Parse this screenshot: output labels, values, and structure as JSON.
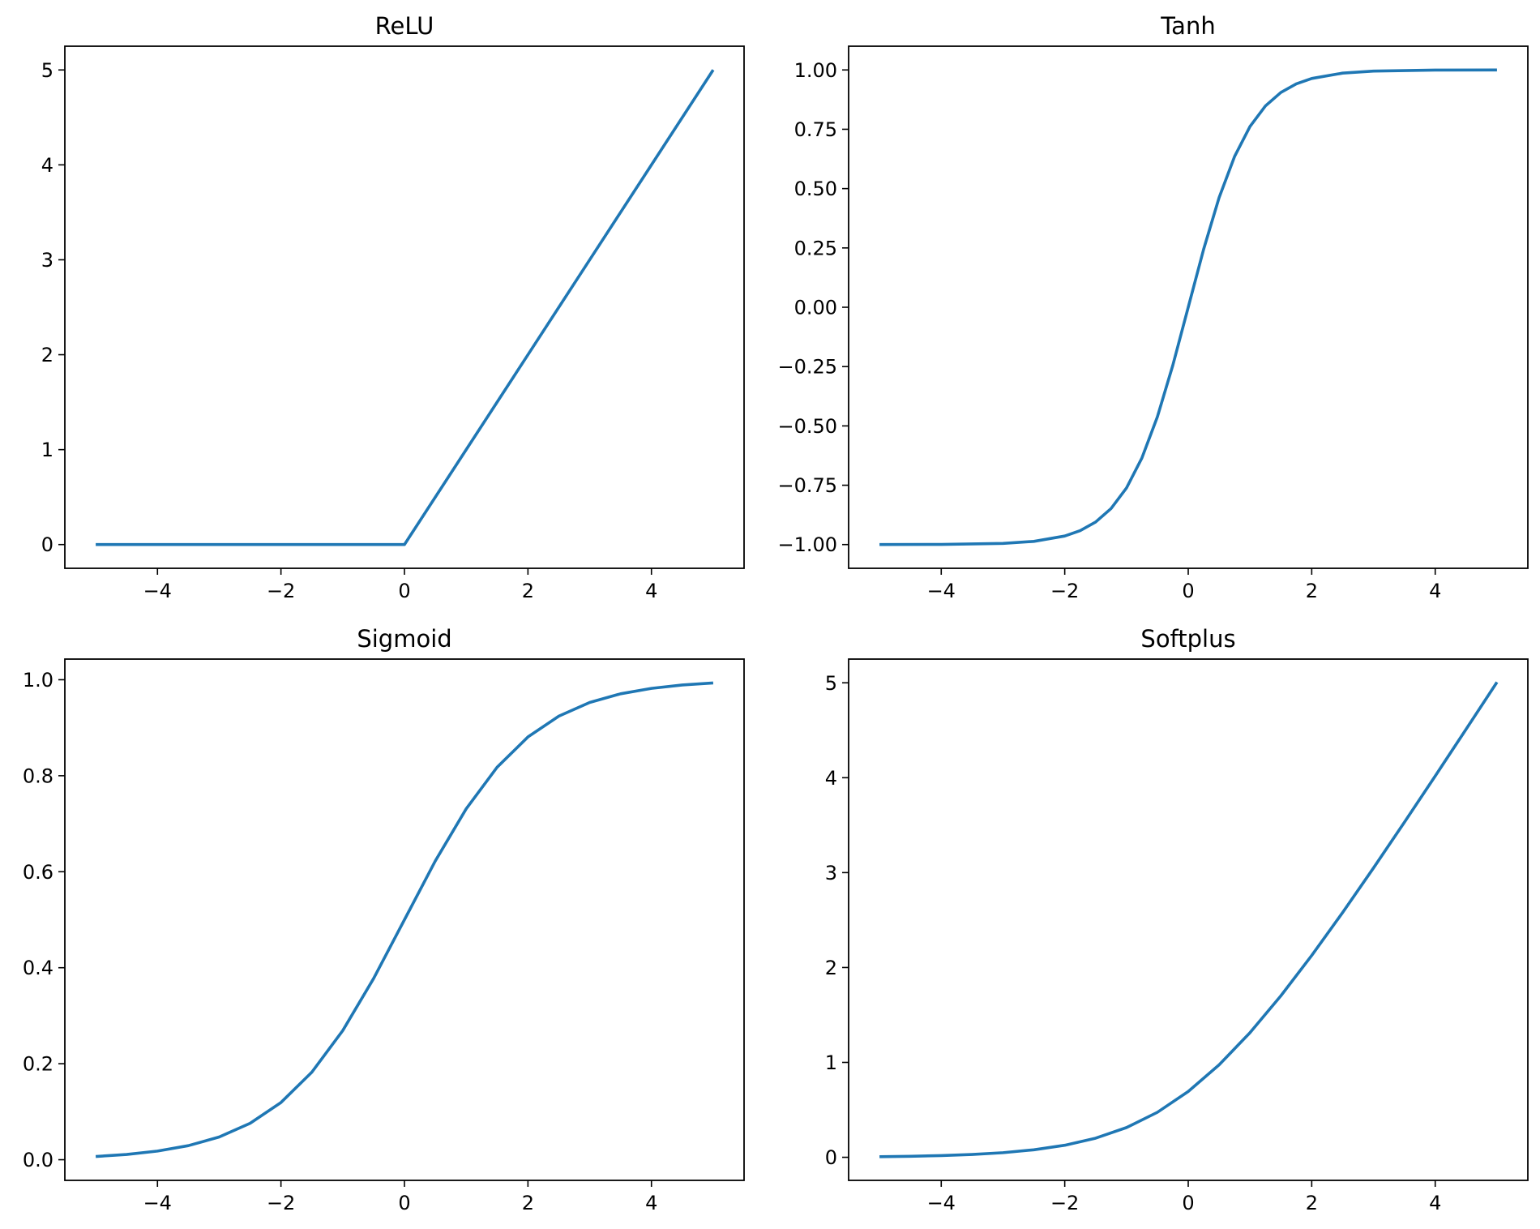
{
  "chart_data": [
    {
      "type": "line",
      "title": "ReLU",
      "xlabel": "",
      "ylabel": "",
      "xlim": [
        -5.5,
        5.5
      ],
      "ylim": [
        -0.25,
        5.25
      ],
      "xticks": [
        -4,
        -2,
        0,
        2,
        4
      ],
      "xtick_labels": [
        "−4",
        "−2",
        "0",
        "2",
        "4"
      ],
      "yticks": [
        0,
        1,
        2,
        3,
        4,
        5
      ],
      "ytick_labels": [
        "0",
        "1",
        "2",
        "3",
        "4",
        "5"
      ],
      "grid": false,
      "series": [
        {
          "x": [
            -5,
            -4,
            -3,
            -2,
            -1,
            0,
            0.05,
            1,
            2,
            3,
            4,
            5
          ],
          "y": [
            0,
            0,
            0,
            0,
            0,
            0,
            0.05,
            1,
            2,
            3,
            4,
            5
          ],
          "color": "#1f77b4"
        }
      ]
    },
    {
      "type": "line",
      "title": "Tanh",
      "xlabel": "",
      "ylabel": "",
      "xlim": [
        -5.5,
        5.5
      ],
      "ylim": [
        -1.1,
        1.1
      ],
      "xticks": [
        -4,
        -2,
        0,
        2,
        4
      ],
      "xtick_labels": [
        "−4",
        "−2",
        "0",
        "2",
        "4"
      ],
      "yticks": [
        -1.0,
        -0.75,
        -0.5,
        -0.25,
        0.0,
        0.25,
        0.5,
        0.75,
        1.0
      ],
      "ytick_labels": [
        "−1.00",
        "−0.75",
        "−0.50",
        "−0.25",
        "0.00",
        "0.25",
        "0.50",
        "0.75",
        "1.00"
      ],
      "grid": false,
      "series": [
        {
          "x": [
            -5,
            -4,
            -3,
            -2.5,
            -2,
            -1.75,
            -1.5,
            -1.25,
            -1,
            -0.75,
            -0.5,
            -0.25,
            0,
            0.25,
            0.5,
            0.75,
            1,
            1.25,
            1.5,
            1.75,
            2,
            2.5,
            3,
            4,
            5
          ],
          "y": [
            -0.9999,
            -0.9993,
            -0.9951,
            -0.9866,
            -0.964,
            -0.9414,
            -0.9051,
            -0.8483,
            -0.7616,
            -0.6351,
            -0.4621,
            -0.2449,
            0,
            0.2449,
            0.4621,
            0.6351,
            0.7616,
            0.8483,
            0.9051,
            0.9414,
            0.964,
            0.9866,
            0.9951,
            0.9993,
            0.9999
          ],
          "color": "#1f77b4"
        }
      ]
    },
    {
      "type": "line",
      "title": "Sigmoid",
      "xlabel": "",
      "ylabel": "",
      "xlim": [
        -5.5,
        5.5
      ],
      "ylim": [
        -0.043,
        1.043
      ],
      "xticks": [
        -4,
        -2,
        0,
        2,
        4
      ],
      "xtick_labels": [
        "−4",
        "−2",
        "0",
        "2",
        "4"
      ],
      "yticks": [
        0.0,
        0.2,
        0.4,
        0.6,
        0.8,
        1.0
      ],
      "ytick_labels": [
        "0.0",
        "0.2",
        "0.4",
        "0.6",
        "0.8",
        "1.0"
      ],
      "grid": false,
      "series": [
        {
          "x": [
            -5,
            -4.5,
            -4,
            -3.5,
            -3,
            -2.5,
            -2,
            -1.5,
            -1,
            -0.5,
            0,
            0.5,
            1,
            1.5,
            2,
            2.5,
            3,
            3.5,
            4,
            4.5,
            5
          ],
          "y": [
            0.0067,
            0.011,
            0.018,
            0.0293,
            0.0474,
            0.0759,
            0.1192,
            0.1824,
            0.2689,
            0.3775,
            0.5,
            0.6225,
            0.7311,
            0.8176,
            0.8808,
            0.9241,
            0.9526,
            0.9707,
            0.982,
            0.989,
            0.9933
          ],
          "color": "#1f77b4"
        }
      ]
    },
    {
      "type": "line",
      "title": "Softplus",
      "xlabel": "",
      "ylabel": "",
      "xlim": [
        -5.5,
        5.5
      ],
      "ylim": [
        -0.243,
        5.25
      ],
      "xticks": [
        -4,
        -2,
        0,
        2,
        4
      ],
      "xtick_labels": [
        "−4",
        "−2",
        "0",
        "2",
        "4"
      ],
      "yticks": [
        0,
        1,
        2,
        3,
        4,
        5
      ],
      "ytick_labels": [
        "0",
        "1",
        "2",
        "3",
        "4",
        "5"
      ],
      "grid": false,
      "series": [
        {
          "x": [
            -5,
            -4.5,
            -4,
            -3.5,
            -3,
            -2.5,
            -2,
            -1.5,
            -1,
            -0.5,
            0,
            0.5,
            1,
            1.5,
            2,
            2.5,
            3,
            3.5,
            4,
            4.5,
            5
          ],
          "y": [
            0.0067,
            0.011,
            0.0181,
            0.0298,
            0.0486,
            0.0789,
            0.1269,
            0.2014,
            0.3133,
            0.4741,
            0.6931,
            0.9741,
            1.3133,
            1.7014,
            2.1269,
            2.5789,
            3.0486,
            3.5298,
            4.0181,
            4.511,
            5.0067
          ],
          "color": "#1f77b4"
        }
      ]
    }
  ]
}
